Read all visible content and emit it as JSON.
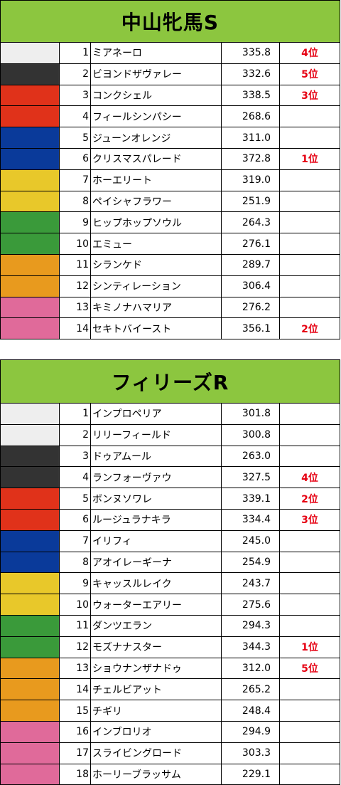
{
  "colors": {
    "header": "#8cc63f",
    "rank_text": "#e60012",
    "frame": {
      "1": "#eeeeee",
      "2": "#333333",
      "3": "#e0321a",
      "4": "#0a3a9a",
      "5": "#e8c82a",
      "6": "#3a9a3a",
      "7": "#e89a1e",
      "8": "#e06a9a"
    }
  },
  "races": [
    {
      "title": "中山牝馬S",
      "entries": [
        {
          "frame": 1,
          "num": "1",
          "name": "ミアネーロ",
          "score": "335.8",
          "rank": "4位"
        },
        {
          "frame": 2,
          "num": "2",
          "name": "ビヨンドザヴァレー",
          "score": "332.6",
          "rank": "5位"
        },
        {
          "frame": 3,
          "num": "3",
          "name": "コンクシェル",
          "score": "338.5",
          "rank": "3位"
        },
        {
          "frame": 3,
          "num": "4",
          "name": "フィールシンパシー",
          "score": "268.6",
          "rank": ""
        },
        {
          "frame": 4,
          "num": "5",
          "name": "ジューンオレンジ",
          "score": "311.0",
          "rank": ""
        },
        {
          "frame": 4,
          "num": "6",
          "name": "クリスマスパレード",
          "score": "372.8",
          "rank": "1位"
        },
        {
          "frame": 5,
          "num": "7",
          "name": "ホーエリート",
          "score": "319.0",
          "rank": ""
        },
        {
          "frame": 5,
          "num": "8",
          "name": "ペイシャフラワー",
          "score": "251.9",
          "rank": ""
        },
        {
          "frame": 6,
          "num": "9",
          "name": "ヒップホップソウル",
          "score": "264.3",
          "rank": ""
        },
        {
          "frame": 6,
          "num": "10",
          "name": "エミュー",
          "score": "276.1",
          "rank": ""
        },
        {
          "frame": 7,
          "num": "11",
          "name": "シランケド",
          "score": "289.7",
          "rank": ""
        },
        {
          "frame": 7,
          "num": "12",
          "name": "シンティレーション",
          "score": "306.4",
          "rank": ""
        },
        {
          "frame": 8,
          "num": "13",
          "name": "キミノナハマリア",
          "score": "276.2",
          "rank": ""
        },
        {
          "frame": 8,
          "num": "14",
          "name": "セキトバイースト",
          "score": "356.1",
          "rank": "2位"
        }
      ]
    },
    {
      "title": "フィリーズR",
      "entries": [
        {
          "frame": 1,
          "num": "1",
          "name": "インプロペリア",
          "score": "301.8",
          "rank": ""
        },
        {
          "frame": 1,
          "num": "2",
          "name": "リリーフィールド",
          "score": "300.8",
          "rank": ""
        },
        {
          "frame": 2,
          "num": "3",
          "name": "ドゥアムール",
          "score": "263.0",
          "rank": ""
        },
        {
          "frame": 2,
          "num": "4",
          "name": "ランフォーヴァウ",
          "score": "327.5",
          "rank": "4位"
        },
        {
          "frame": 3,
          "num": "5",
          "name": "ボンヌソワレ",
          "score": "339.1",
          "rank": "2位"
        },
        {
          "frame": 3,
          "num": "6",
          "name": "ルージュラナキラ",
          "score": "334.4",
          "rank": "3位"
        },
        {
          "frame": 4,
          "num": "7",
          "name": "イリフィ",
          "score": "245.0",
          "rank": ""
        },
        {
          "frame": 4,
          "num": "8",
          "name": "アオイレーギーナ",
          "score": "254.9",
          "rank": ""
        },
        {
          "frame": 5,
          "num": "9",
          "name": "キャッスルレイク",
          "score": "243.7",
          "rank": ""
        },
        {
          "frame": 5,
          "num": "10",
          "name": "ウォーターエアリー",
          "score": "275.6",
          "rank": ""
        },
        {
          "frame": 6,
          "num": "11",
          "name": "ダンツエラン",
          "score": "294.3",
          "rank": ""
        },
        {
          "frame": 6,
          "num": "12",
          "name": "モズナナスター",
          "score": "344.3",
          "rank": "1位"
        },
        {
          "frame": 7,
          "num": "13",
          "name": "ショウナンザナドゥ",
          "score": "312.0",
          "rank": "5位"
        },
        {
          "frame": 7,
          "num": "14",
          "name": "チェルビアット",
          "score": "265.2",
          "rank": ""
        },
        {
          "frame": 7,
          "num": "15",
          "name": "チギリ",
          "score": "248.4",
          "rank": ""
        },
        {
          "frame": 8,
          "num": "16",
          "name": "インブロリオ",
          "score": "294.9",
          "rank": ""
        },
        {
          "frame": 8,
          "num": "17",
          "name": "スライビングロード",
          "score": "303.3",
          "rank": ""
        },
        {
          "frame": 8,
          "num": "18",
          "name": "ホーリーブラッサム",
          "score": "229.1",
          "rank": ""
        }
      ]
    }
  ]
}
